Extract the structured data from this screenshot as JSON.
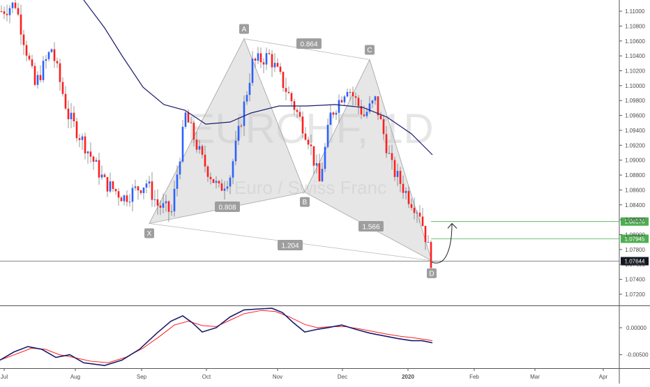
{
  "chart_data": [
    {
      "type": "candlestick",
      "symbol_watermark": "EURCHF, 1D",
      "name_watermark": "Euro / Swiss Franc",
      "ylim": [
        1.0705,
        1.1115
      ],
      "x_ticks": [
        "Jul",
        "Aug",
        "Sep",
        "Oct",
        "Nov",
        "Dec",
        "2020",
        "Feb",
        "Mar",
        "Apr"
      ],
      "y_ticks": [
        "1.11000",
        "1.10800",
        "1.10600",
        "1.10400",
        "1.10200",
        "1.10000",
        "1.09800",
        "1.09600",
        "1.09400",
        "1.09200",
        "1.09000",
        "1.08800",
        "1.08600",
        "1.08400",
        "1.08200",
        "1.08000",
        "1.07800",
        "1.07600",
        "1.07400",
        "1.07200"
      ],
      "y_tick_values": [
        1.11,
        1.108,
        1.106,
        1.104,
        1.102,
        1.1,
        1.098,
        1.096,
        1.094,
        1.092,
        1.09,
        1.088,
        1.086,
        1.084,
        1.082,
        1.08,
        1.078,
        1.076,
        1.074,
        1.072
      ],
      "price_tags": [
        {
          "label": "1.08176",
          "value": 1.08176,
          "color": "#4caf50"
        },
        {
          "label": "1.07945",
          "value": 1.07945,
          "color": "#4caf50"
        },
        {
          "label": "1.07644",
          "value": 1.07644,
          "color": "#131722"
        }
      ],
      "harmonic_points": [
        {
          "label": "X",
          "value": 1.0815
        },
        {
          "label": "A",
          "value": 1.1063
        },
        {
          "label": "B",
          "value": 1.0857
        },
        {
          "label": "C",
          "value": 1.1035
        },
        {
          "label": "D",
          "value": 1.0765
        }
      ],
      "harmonic_ratios": [
        "0.864",
        "0.808",
        "1.204",
        "1.566"
      ],
      "candle_colors": {
        "up": "#2962ff",
        "down": "#ff1e1e"
      },
      "moving_average_color": "#1a1a6e",
      "pattern_fill": "#c8c8c8",
      "target_line_color": "#4caf50"
    },
    {
      "type": "line",
      "ylim": [
        -0.0075,
        0.004
      ],
      "y_ticks": [
        "0.00000",
        "-0.00500"
      ],
      "y_tick_values": [
        0.0,
        -0.005
      ],
      "series_colors": [
        "#1a1a6e",
        "#ff1e1e"
      ]
    }
  ]
}
